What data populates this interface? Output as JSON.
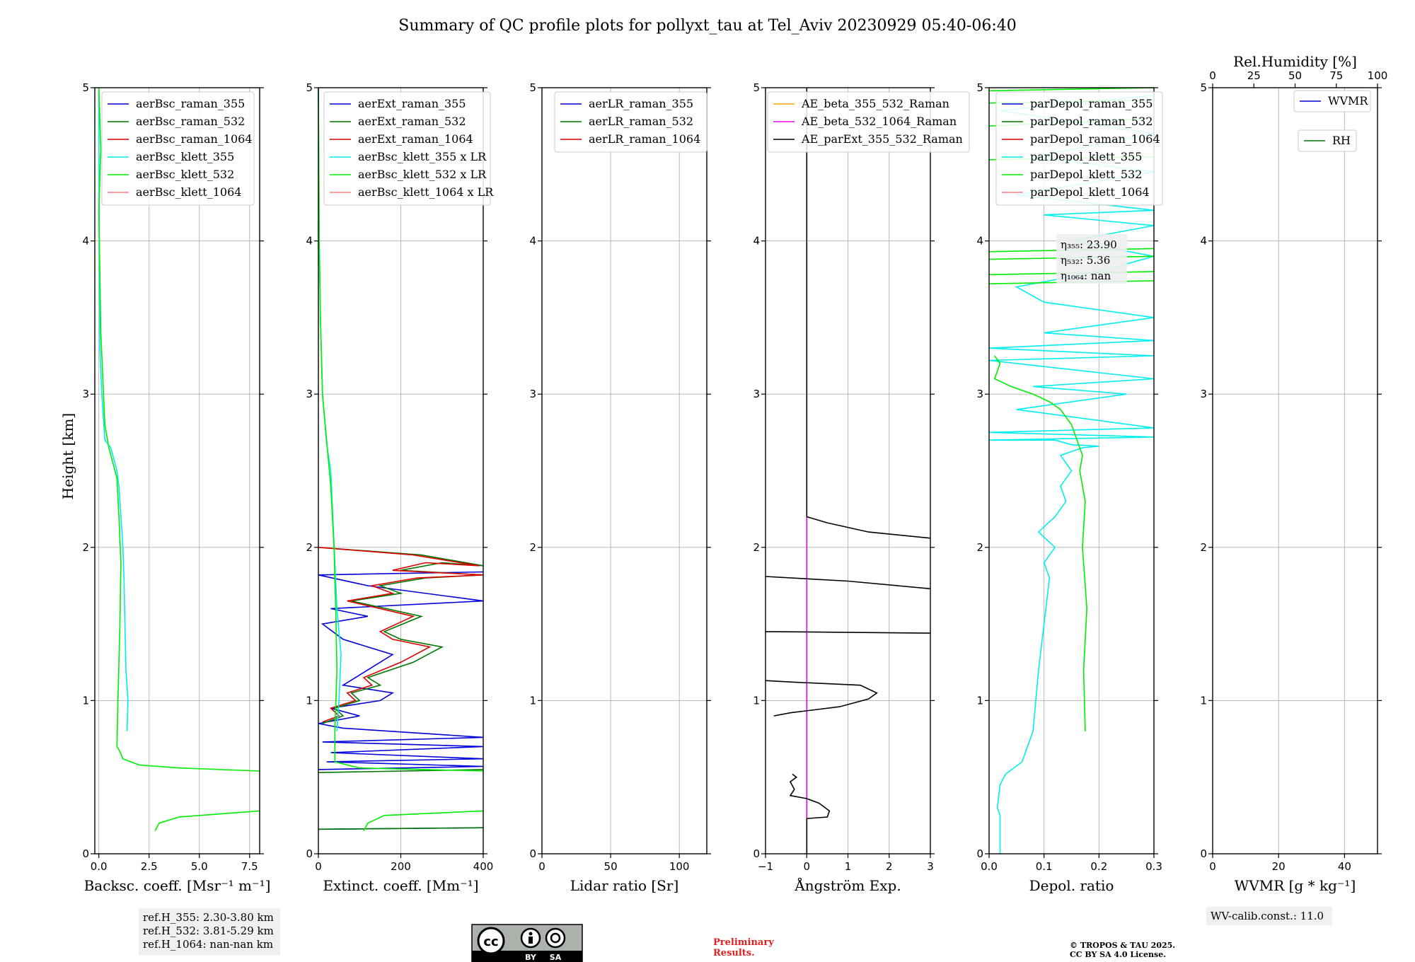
{
  "title": "Summary of QC profile plots for pollyxt_tau at Tel_Aviv 20230929 05:40-06:40",
  "ylabel": "Height [km]",
  "colors": {
    "blue": "#0000dd",
    "green": "#007700",
    "red": "#dd0000",
    "cyan": "#00eeee",
    "lime": "#00ee00",
    "pink": "#f08080",
    "orange": "#ffa500",
    "magenta": "#ee00ee",
    "black": "#000000"
  },
  "chart_data": [
    {
      "type": "line",
      "xlabel": "Backsc. coeff. [Msr⁻¹ m⁻¹]",
      "xlim": [
        -0.2,
        8.0
      ],
      "ylim": [
        0,
        5
      ],
      "xticks": [
        0,
        2.5,
        5,
        7.5
      ],
      "xtick_labels": [
        "0.0",
        "2.5",
        "5.0",
        "7.5"
      ],
      "legend": [
        {
          "label": "aerBsc_raman_355",
          "color": "#0000dd"
        },
        {
          "label": "aerBsc_raman_532",
          "color": "#007700"
        },
        {
          "label": "aerBsc_raman_1064",
          "color": "#dd0000"
        },
        {
          "label": "aerBsc_klett_355",
          "color": "#00eeee"
        },
        {
          "label": "aerBsc_klett_532",
          "color": "#00ee00"
        },
        {
          "label": "aerBsc_klett_1064",
          "color": "#f08080"
        }
      ],
      "series": [
        {
          "name": "aerBsc_klett_355",
          "color": "#00eeee",
          "x": [
            1.4,
            1.45,
            1.35,
            1.3,
            1.25,
            1.2,
            1.1,
            1.0,
            0.9,
            0.6,
            0.3,
            0.15,
            0.05,
            0.02,
            0.0
          ],
          "y": [
            0.8,
            1.0,
            1.2,
            1.5,
            1.8,
            2.0,
            2.2,
            2.4,
            2.5,
            2.65,
            2.7,
            3.0,
            3.3,
            4.0,
            5.0
          ]
        },
        {
          "name": "aerBsc_klett_532",
          "color": "#00ee00",
          "x": [
            2.8,
            3.0,
            4.0,
            8.0,
            null,
            8.0,
            4.0,
            2.0,
            1.2,
            1.0,
            0.9,
            0.95,
            1.05,
            1.1,
            1.0,
            0.9,
            0.7,
            0.5,
            0.3,
            0.2,
            0.1,
            0.05,
            0.0,
            0.1,
            0.0
          ],
          "y": [
            0.15,
            0.2,
            0.24,
            0.28,
            null,
            0.54,
            0.56,
            0.58,
            0.62,
            0.68,
            0.7,
            1.0,
            1.5,
            1.9,
            2.2,
            2.45,
            2.55,
            2.65,
            2.8,
            3.1,
            3.4,
            3.8,
            4.2,
            4.6,
            5.0
          ]
        }
      ],
      "info_box": {
        "lines": [
          "ref.H_355: 2.30-3.80 km",
          "ref.H_532: 3.81-5.29 km",
          "ref.H_1064: nan-nan km"
        ]
      }
    },
    {
      "type": "line",
      "xlabel": "Extinct. coeff. [Mm⁻¹]",
      "xlim": [
        0,
        400
      ],
      "ylim": [
        0,
        5
      ],
      "xticks": [
        0,
        200,
        400
      ],
      "xtick_labels": [
        "0",
        "200",
        "400"
      ],
      "legend": [
        {
          "label": "aerExt_raman_355",
          "color": "#0000dd"
        },
        {
          "label": "aerExt_raman_532",
          "color": "#007700"
        },
        {
          "label": "aerExt_raman_1064",
          "color": "#dd0000"
        },
        {
          "label": "aerBsc_klett_355 x LR",
          "color": "#00eeee"
        },
        {
          "label": "aerBsc_klett_532 x LR",
          "color": "#00ee00"
        },
        {
          "label": "aerBsc_klett_1064 x LR",
          "color": "#f08080"
        }
      ],
      "series": [
        {
          "name": "aerExt_raman_355",
          "color": "#0000dd",
          "x": [
            0,
            400,
            null,
            0,
            400,
            20,
            400,
            30,
            400,
            10,
            400,
            60,
            0,
            100,
            30,
            150,
            180,
            60,
            120,
            180,
            60,
            10,
            120,
            30,
            400,
            120,
            0,
            400
          ],
          "y": [
            0.16,
            0.17,
            null,
            0.55,
            0.57,
            0.6,
            0.62,
            0.66,
            0.7,
            0.73,
            0.76,
            0.82,
            0.85,
            0.9,
            0.95,
            1.0,
            1.05,
            1.1,
            1.2,
            1.3,
            1.4,
            1.5,
            1.55,
            1.6,
            1.65,
            1.75,
            1.82,
            1.84
          ]
        },
        {
          "name": "aerExt_raman_532",
          "color": "#007700",
          "x": [
            0,
            400,
            null,
            0,
            400,
            null,
            10,
            60,
            40,
            100,
            80,
            150,
            120,
            230,
            300,
            200,
            160,
            250,
            80,
            200,
            150,
            260,
            400,
            200,
            300,
            400,
            250,
            0
          ],
          "y": [
            0.16,
            0.17,
            null,
            0.53,
            0.55,
            null,
            0.85,
            0.9,
            0.95,
            1.0,
            1.05,
            1.1,
            1.15,
            1.25,
            1.35,
            1.4,
            1.45,
            1.55,
            1.65,
            1.7,
            1.75,
            1.8,
            1.82,
            1.85,
            1.9,
            1.88,
            1.95,
            2.0
          ]
        },
        {
          "name": "aerExt_raman_1064",
          "color": "#dd0000",
          "x": [
            10,
            50,
            30,
            90,
            70,
            130,
            110,
            200,
            270,
            180,
            150,
            230,
            70,
            180,
            130,
            240,
            400,
            180,
            260,
            390,
            230,
            0
          ],
          "y": [
            0.86,
            0.9,
            0.95,
            1.0,
            1.05,
            1.1,
            1.15,
            1.25,
            1.35,
            1.4,
            1.45,
            1.55,
            1.65,
            1.7,
            1.75,
            1.8,
            1.82,
            1.85,
            1.9,
            1.88,
            1.95,
            2.0
          ]
        },
        {
          "name": "aerBsc_klett_355 x LR",
          "color": "#00eeee",
          "x": [
            45,
            50,
            55,
            45,
            40,
            35,
            30,
            20,
            10,
            5,
            2,
            0
          ],
          "y": [
            0.8,
            1.0,
            1.3,
            1.6,
            1.9,
            2.2,
            2.5,
            2.68,
            3.0,
            3.5,
            4.0,
            5.0
          ]
        },
        {
          "name": "aerBsc_klett_532 x LR",
          "color": "#00ee00",
          "x": [
            110,
            120,
            160,
            400,
            null,
            400,
            100,
            40,
            40,
            45,
            42,
            38,
            30,
            20,
            10,
            5,
            2,
            0
          ],
          "y": [
            0.15,
            0.2,
            0.25,
            0.28,
            null,
            0.54,
            0.56,
            0.6,
            0.8,
            1.2,
            1.6,
            2.0,
            2.4,
            2.7,
            3.0,
            3.5,
            4.0,
            5.0
          ]
        }
      ]
    },
    {
      "type": "line",
      "xlabel": "Lidar ratio [Sr]",
      "xlim": [
        0,
        120
      ],
      "ylim": [
        0,
        5
      ],
      "xticks": [
        0,
        50,
        100
      ],
      "xtick_labels": [
        "0",
        "50",
        "100"
      ],
      "legend": [
        {
          "label": "aerLR_raman_355",
          "color": "#0000dd"
        },
        {
          "label": "aerLR_raman_532",
          "color": "#007700"
        },
        {
          "label": "aerLR_raman_1064",
          "color": "#dd0000"
        }
      ],
      "series": []
    },
    {
      "type": "line",
      "xlabel": "Ångström Exp.",
      "xlim": [
        -1,
        3
      ],
      "ylim": [
        0,
        5
      ],
      "xticks": [
        -1,
        0,
        1,
        2,
        3
      ],
      "xtick_labels": [
        "−1",
        "0",
        "1",
        "2",
        "3"
      ],
      "legend": [
        {
          "label": "AE_beta_355_532_Raman",
          "color": "#ffa500"
        },
        {
          "label": "AE_beta_532_1064_Raman",
          "color": "#ee00ee"
        },
        {
          "label": "AE_parExt_355_532_Raman",
          "color": "#000000"
        }
      ],
      "series": [
        {
          "name": "AE_beta_532_1064_Raman",
          "color": "#ee00ee",
          "x": [
            0,
            0
          ],
          "y": [
            0,
            2.2
          ]
        },
        {
          "name": "AE_parExt_355_532_Raman",
          "color": "#000000",
          "x": [
            0,
            0,
            0.5,
            0.55,
            0.3,
            0,
            -0.4,
            -0.3,
            -0.4,
            -0.25,
            -0.35,
            null,
            -0.8,
            -0.4,
            0.8,
            1.5,
            1.7,
            1.3,
            -0.3,
            -1.0,
            null,
            -1.0,
            3.0,
            null,
            -1.0,
            1.0,
            3.0,
            null,
            3.0,
            1.5,
            0.5,
            0,
            0
          ],
          "y": [
            0,
            0.23,
            0.24,
            0.28,
            0.33,
            0.36,
            0.38,
            0.42,
            0.47,
            0.5,
            0.52,
            null,
            0.9,
            0.92,
            0.96,
            1.01,
            1.05,
            1.1,
            1.12,
            1.13,
            null,
            1.45,
            1.44,
            null,
            1.81,
            1.78,
            1.73,
            null,
            2.06,
            2.1,
            2.16,
            2.2,
            5.0
          ]
        }
      ]
    },
    {
      "type": "line",
      "xlabel": "Depol. ratio",
      "xlim": [
        0,
        0.3
      ],
      "ylim": [
        0,
        5
      ],
      "xticks": [
        0,
        0.1,
        0.2,
        0.3
      ],
      "xtick_labels": [
        "0.0",
        "0.1",
        "0.2",
        "0.3"
      ],
      "legend": [
        {
          "label": "parDepol_raman_355",
          "color": "#0000dd"
        },
        {
          "label": "parDepol_raman_532",
          "color": "#007700"
        },
        {
          "label": "parDepol_raman_1064",
          "color": "#dd0000"
        },
        {
          "label": "parDepol_klett_355",
          "color": "#00eeee"
        },
        {
          "label": "parDepol_klett_532",
          "color": "#00ee00"
        },
        {
          "label": "parDepol_klett_1064",
          "color": "#f08080"
        }
      ],
      "series": [
        {
          "name": "parDepol_klett_355",
          "color": "#00eeee",
          "x": [
            0.02,
            0.02,
            0.015,
            0.02,
            0.03,
            0.06,
            0.08,
            0.09,
            0.1,
            0.11,
            0.1,
            0.12,
            0.09,
            0.12,
            0.14,
            0.13,
            0.15,
            0.13,
            0.17,
            0.2,
            0.15,
            0.12,
            0.05,
            0.0,
            0.3,
            0.0,
            0.3,
            0.05,
            0.25,
            0.08,
            0.3,
            0.1,
            0.0,
            0.3,
            0.0,
            0.3,
            0.1,
            0.3,
            0.1,
            0.05,
            0.2,
            0.3,
            0.15,
            0.3,
            0.1,
            0.3,
            0.05,
            0.3,
            0.08,
            0.3,
            0.02,
            0.3
          ],
          "y": [
            0,
            0.25,
            0.3,
            0.45,
            0.52,
            0.6,
            0.8,
            1.2,
            1.5,
            1.8,
            1.9,
            2.0,
            2.1,
            2.2,
            2.3,
            2.4,
            2.5,
            2.6,
            2.65,
            2.66,
            2.67,
            2.7,
            2.7,
            2.7,
            2.72,
            2.75,
            2.78,
            2.9,
            3.0,
            3.05,
            3.1,
            3.18,
            3.22,
            3.25,
            3.3,
            3.35,
            3.4,
            3.5,
            3.6,
            3.7,
            3.8,
            3.9,
            4.0,
            4.1,
            4.17,
            4.2,
            4.3,
            4.45,
            4.55,
            4.7,
            4.85,
            4.95
          ]
        },
        {
          "name": "parDepol_klett_532",
          "color": "#00ee00",
          "x": [
            0.175,
            0.172,
            0.178,
            0.17,
            0.175,
            0.165,
            0.17,
            0.16,
            0.15,
            0.13,
            0.11,
            0.08,
            0.04,
            0.01,
            0.02,
            0.01,
            null,
            0.0,
            0.3,
            null,
            0.0,
            0.3,
            null,
            0.0,
            0.3,
            null,
            0.0,
            0.3,
            null,
            0.0,
            0.3,
            null,
            0.0,
            0.3,
            null,
            0.0,
            0.3,
            null,
            0.0,
            0.3
          ],
          "y": [
            0.8,
            1.2,
            1.6,
            2.0,
            2.3,
            2.5,
            2.6,
            2.7,
            2.8,
            2.9,
            2.95,
            3.0,
            3.05,
            3.1,
            3.2,
            3.25,
            null,
            3.72,
            3.74,
            null,
            3.78,
            3.8,
            null,
            3.88,
            3.9,
            null,
            3.93,
            3.95,
            null,
            4.53,
            4.55,
            null,
            4.75,
            4.8,
            null,
            4.9,
            4.92,
            null,
            4.98,
            5.0
          ]
        }
      ],
      "info_box": {
        "lines": [
          "η₃₅₅: 23.90",
          "η₅₃₂: 5.36",
          "η₁₀₆₄: nan"
        ]
      }
    },
    {
      "type": "line",
      "xlabel": "WVMR [g * kg⁻¹]",
      "xlim": [
        0,
        50
      ],
      "ylim": [
        0,
        5
      ],
      "xticks": [
        0,
        20,
        40
      ],
      "xtick_labels": [
        "0",
        "20",
        "40"
      ],
      "top_xlabel": "Rel.Humidity [%]",
      "top_xticks": [
        0,
        25,
        50,
        75,
        100
      ],
      "top_xtick_labels": [
        "0",
        "25",
        "50",
        "75",
        "100"
      ],
      "legend": [
        {
          "label": "WVMR",
          "color": "#0000dd"
        },
        {
          "label": "RH",
          "color": "#007700"
        }
      ],
      "series": [],
      "info_box": {
        "lines": [
          "WV-calib.const.: 11.0"
        ]
      }
    }
  ],
  "footer": {
    "cc_by": "BY",
    "cc_sa": "SA",
    "preliminary_1": "Preliminary",
    "preliminary_2": "Results.",
    "copyright_1": "© TROPOS & TAU 2025.",
    "copyright_2": "CC BY SA 4.0 License."
  }
}
